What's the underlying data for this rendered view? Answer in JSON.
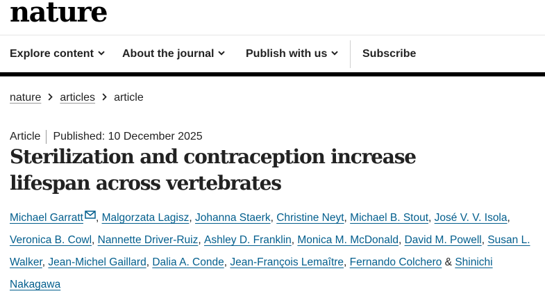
{
  "brand": {
    "logo_text": "nature"
  },
  "nav": {
    "items": [
      {
        "label": "Explore content",
        "has_dropdown": true
      },
      {
        "label": "About the journal",
        "has_dropdown": true
      },
      {
        "label": "Publish with us",
        "has_dropdown": true
      },
      {
        "label": "Subscribe",
        "has_dropdown": false
      }
    ]
  },
  "breadcrumb": {
    "items": [
      {
        "label": "nature",
        "link": true
      },
      {
        "label": "articles",
        "link": true
      },
      {
        "label": "article",
        "link": false
      }
    ]
  },
  "article": {
    "type": "Article",
    "published": "Published: 10 December 2025",
    "title": "Sterilization and contraception increase lifespan across vertebrates",
    "authors": [
      {
        "name": "Michael Garratt",
        "corresponding": true
      },
      {
        "name": "Malgorzata Lagisz"
      },
      {
        "name": "Johanna Staerk"
      },
      {
        "name": "Christine Neyt"
      },
      {
        "name": "Michael B. Stout"
      },
      {
        "name": "José V. V. Isola"
      },
      {
        "name": "Veronica B. Cowl"
      },
      {
        "name": "Nannette Driver-Ruiz"
      },
      {
        "name": "Ashley D. Franklin"
      },
      {
        "name": "Monica M. McDonald"
      },
      {
        "name": "David M. Powell"
      },
      {
        "name": "Susan L. Walker"
      },
      {
        "name": "Jean-Michel Gaillard"
      },
      {
        "name": "Dalia A. Conde"
      },
      {
        "name": "Jean-François Lemaître"
      },
      {
        "name": "Fernando Colchero"
      },
      {
        "name": "Shinichi Nakagawa"
      }
    ],
    "author_separator": ", ",
    "last_author_conjunction": " & "
  },
  "colors": {
    "link": "#025e8d",
    "text": "#222222",
    "nav_bar": "#000000"
  },
  "icons": {
    "dropdown": "chevron-down-icon",
    "breadcrumb_separator": "chevron-right-icon",
    "email": "mail-icon"
  }
}
